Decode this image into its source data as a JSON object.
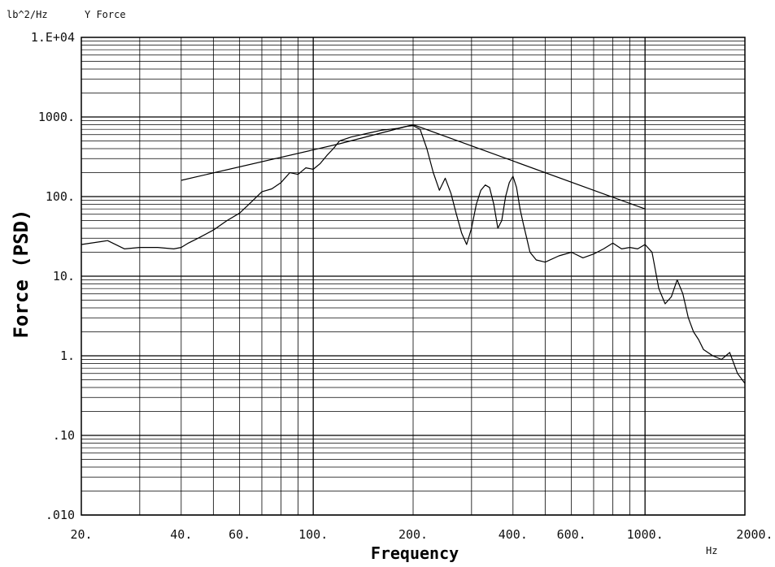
{
  "chart_data": {
    "type": "line",
    "title": "Y Force",
    "y_unit": "lb^2/Hz",
    "x_unit": "Hz",
    "xlabel": "Frequency",
    "ylabel": "Force (PSD)",
    "xscale": "log",
    "yscale": "log",
    "xlim": [
      20,
      2000
    ],
    "ylim": [
      0.01,
      10000
    ],
    "grid": true,
    "x_tick_labels": [
      {
        "value": 20,
        "label": "20."
      },
      {
        "value": 40,
        "label": "40."
      },
      {
        "value": 60,
        "label": "60."
      },
      {
        "value": 100,
        "label": "100."
      },
      {
        "value": 200,
        "label": "200."
      },
      {
        "value": 400,
        "label": "400."
      },
      {
        "value": 600,
        "label": "600."
      },
      {
        "value": 1000,
        "label": "1000."
      },
      {
        "value": 2000,
        "label": "2000."
      }
    ],
    "y_tick_labels": [
      {
        "value": 10000,
        "label": "1.E+04"
      },
      {
        "value": 1000,
        "label": "1000."
      },
      {
        "value": 100,
        "label": "100."
      },
      {
        "value": 10,
        "label": "10."
      },
      {
        "value": 1,
        "label": "1."
      },
      {
        "value": 0.1,
        "label": ".10"
      },
      {
        "value": 0.01,
        "label": ".010"
      }
    ],
    "series": [
      {
        "x": [
          40,
          120,
          200,
          1000
        ],
        "y": [
          160,
          460,
          800,
          70
        ]
      },
      {
        "x": [
          20,
          24,
          27,
          30,
          34,
          38,
          40,
          42,
          45,
          50,
          55,
          60,
          65,
          70,
          75,
          80,
          85,
          90,
          95,
          100,
          105,
          110,
          115,
          120,
          130,
          140,
          150,
          160,
          170,
          180,
          190,
          200,
          210,
          220,
          230,
          240,
          250,
          260,
          270,
          280,
          290,
          300,
          310,
          320,
          330,
          340,
          350,
          360,
          370,
          380,
          390,
          400,
          410,
          420,
          430,
          440,
          450,
          470,
          500,
          550,
          600,
          650,
          700,
          750,
          800,
          850,
          900,
          950,
          1000,
          1050,
          1100,
          1150,
          1200,
          1250,
          1300,
          1350,
          1400,
          1450,
          1500,
          1600,
          1700,
          1800,
          1900,
          2000
        ],
        "y": [
          25,
          28,
          22,
          23,
          23,
          22,
          23,
          26,
          30,
          38,
          50,
          62,
          85,
          115,
          125,
          150,
          200,
          190,
          230,
          220,
          260,
          330,
          400,
          500,
          560,
          600,
          640,
          680,
          700,
          720,
          760,
          780,
          700,
          400,
          200,
          120,
          170,
          110,
          60,
          35,
          25,
          40,
          80,
          120,
          140,
          130,
          80,
          40,
          50,
          100,
          150,
          180,
          130,
          70,
          45,
          30,
          20,
          16,
          15,
          18,
          20,
          17,
          19,
          22,
          26,
          22,
          23,
          22,
          25,
          20,
          7,
          4.5,
          5.5,
          9,
          6,
          3,
          2,
          1.6,
          1.2,
          1.0,
          0.9,
          1.1,
          0.6,
          0.45
        ]
      }
    ]
  }
}
